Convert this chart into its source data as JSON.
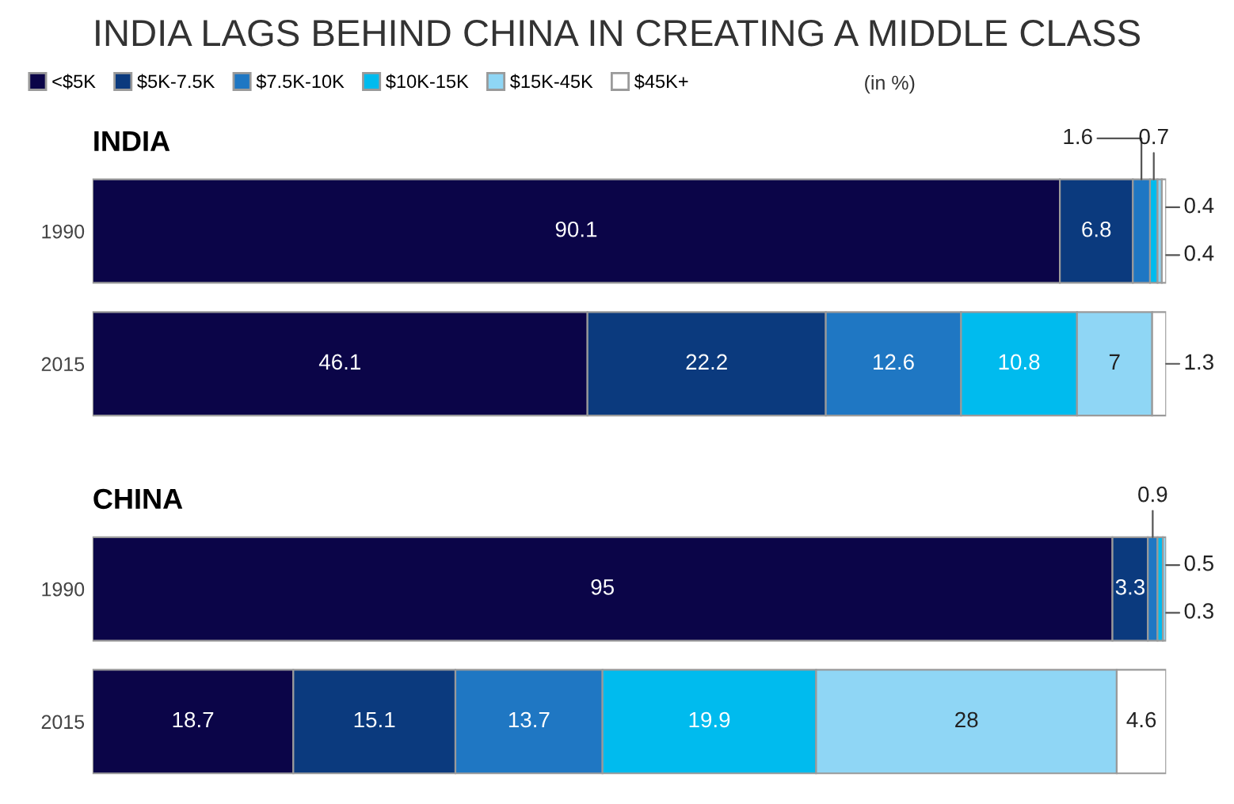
{
  "chart_data": [
    {
      "type": "bar",
      "orientation": "horizontal",
      "stacked": true,
      "title": "INDIA LAGS BEHIND CHINA IN CREATING A MIDDLE CLASS",
      "subtitle": "INDIA",
      "annotations": [
        "(in %)"
      ],
      "legend": "top left",
      "data_labels": true,
      "categories": [
        "1990",
        "2015"
      ],
      "series": [
        {
          "name": "<$5K",
          "color": "#0b0548",
          "values": [
            90.1,
            46.1
          ]
        },
        {
          "name": "$5K-7.5K",
          "color": "#0b3a7e",
          "values": [
            6.8,
            22.2
          ]
        },
        {
          "name": "$7.5K-10K",
          "color": "#1f77c3",
          "values": [
            1.6,
            12.6
          ]
        },
        {
          "name": "$10K-15K",
          "color": "#00bbee",
          "values": [
            0.7,
            10.8
          ]
        },
        {
          "name": "$15K-45K",
          "color": "#8fd6f5",
          "values": [
            0.4,
            7
          ]
        },
        {
          "name": "$45K+",
          "color": "#ffffff",
          "values": [
            0.4,
            1.3
          ]
        }
      ]
    },
    {
      "type": "bar",
      "orientation": "horizontal",
      "stacked": true,
      "title": "CHINA",
      "data_labels": true,
      "categories": [
        "1990",
        "2015"
      ],
      "series": [
        {
          "color": "#0b0548",
          "values": [
            95,
            18.7
          ]
        },
        {
          "color": "#0b3a7e",
          "values": [
            3.3,
            15.1
          ]
        },
        {
          "color": "#1f77c3",
          "values": [
            0.9,
            13.7
          ]
        },
        {
          "color": "#00bbee",
          "values": [
            0.5,
            19.9
          ]
        },
        {
          "color": "#8fd6f5",
          "values": [
            0.3,
            28
          ]
        },
        {
          "color": "#ffffff",
          "values": [
            null,
            4.6
          ]
        }
      ]
    }
  ]
}
